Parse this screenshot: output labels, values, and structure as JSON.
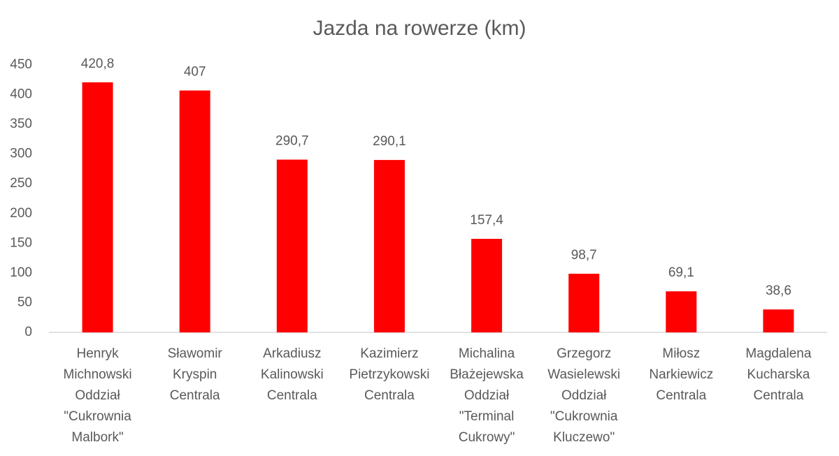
{
  "chart_data": {
    "type": "bar",
    "title": "Jazda na rowerze (km)",
    "categories": [
      [
        "Henryk",
        "Michnowski",
        "Oddział",
        "\"Cukrownia",
        "Malbork\""
      ],
      [
        "Sławomir",
        "Kryspin",
        "Centrala"
      ],
      [
        "Arkadiusz",
        "Kalinowski",
        "Centrala"
      ],
      [
        "Kazimierz",
        "Pietrzykowski",
        "Centrala"
      ],
      [
        "Michalina",
        "Błażejewska",
        "Oddział",
        "\"Terminal",
        "Cukrowy\""
      ],
      [
        "Grzegorz",
        "Wasielewski",
        "Oddział",
        "\"Cukrownia",
        "Kluczewo\""
      ],
      [
        "Miłosz",
        "Narkiewicz",
        "Centrala"
      ],
      [
        "Magdalena",
        "Kucharska",
        "Centrala"
      ]
    ],
    "values": [
      420.8,
      407,
      290.7,
      290.1,
      157.4,
      98.7,
      69.1,
      38.6
    ],
    "value_labels": [
      "420,8",
      "407",
      "290,7",
      "290,1",
      "157,4",
      "98,7",
      "69,1",
      "38,6"
    ],
    "color": "#ff0000",
    "ylim": [
      0,
      450
    ],
    "yticks": [
      0,
      50,
      100,
      150,
      200,
      250,
      300,
      350,
      400,
      450
    ],
    "grid": false
  }
}
